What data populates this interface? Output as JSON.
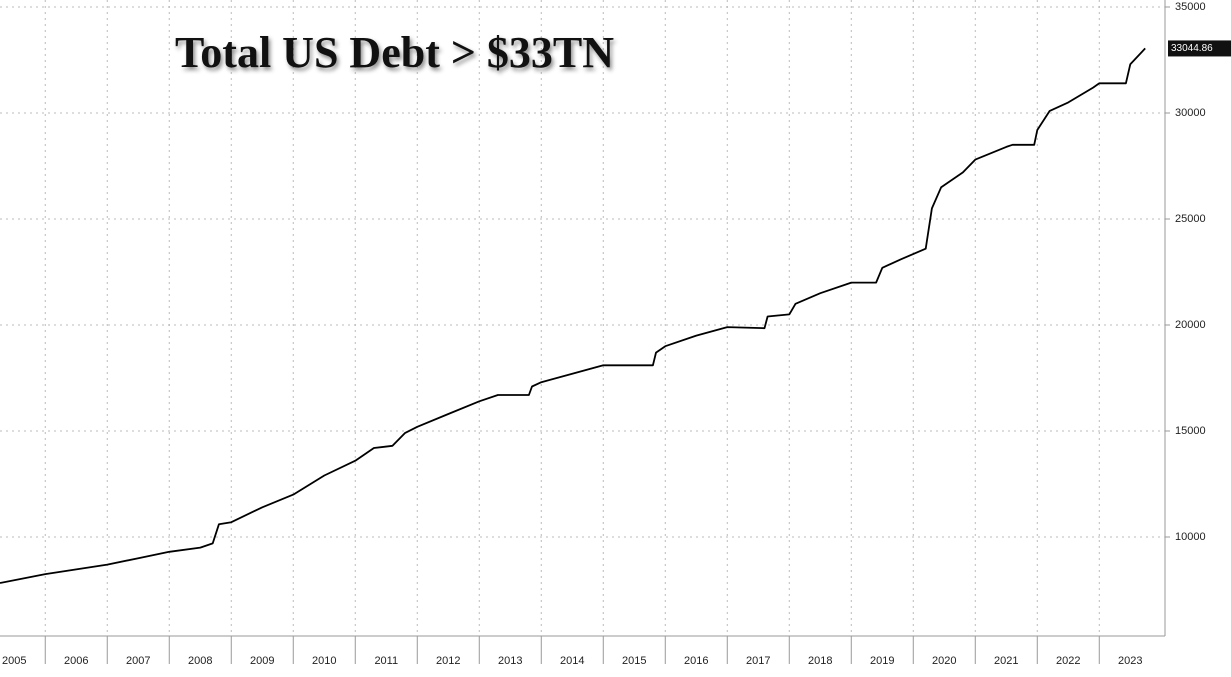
{
  "chart_data": {
    "type": "line",
    "title": "Total US Debt > $33TN",
    "x": [
      2005.27,
      2006.0,
      2007.0,
      2007.5,
      2008.0,
      2008.5,
      2008.7,
      2008.8,
      2009.0,
      2009.5,
      2010.0,
      2010.5,
      2011.0,
      2011.3,
      2011.6,
      2011.8,
      2012.0,
      2012.5,
      2013.0,
      2013.3,
      2013.8,
      2013.85,
      2014.0,
      2014.5,
      2015.0,
      2015.8,
      2015.85,
      2016.0,
      2016.5,
      2017.0,
      2017.6,
      2017.65,
      2018.0,
      2018.1,
      2018.5,
      2019.0,
      2019.4,
      2019.5,
      2019.8,
      2020.2,
      2020.3,
      2020.45,
      2020.8,
      2021.0,
      2021.5,
      2021.6,
      2021.95,
      2022.0,
      2022.2,
      2022.5,
      2022.9,
      2023.0,
      2023.43,
      2023.5,
      2023.74
    ],
    "series": [
      {
        "color": "#000000",
        "values": [
          7830,
          8250,
          8700,
          9000,
          9300,
          9500,
          9700,
          10600,
          10700,
          11400,
          12000,
          12900,
          13600,
          14200,
          14300,
          14900,
          15200,
          15800,
          16400,
          16700,
          16700,
          17100,
          17300,
          17700,
          18100,
          18100,
          18700,
          19000,
          19500,
          19900,
          19850,
          20400,
          20500,
          21000,
          21500,
          22000,
          22000,
          22700,
          23100,
          23600,
          25500,
          26500,
          27200,
          27800,
          28400,
          28500,
          28500,
          29200,
          30100,
          30500,
          31200,
          31400,
          31400,
          32300,
          33044.86
        ]
      }
    ],
    "xlim": [
      2005.27,
      2024.06
    ],
    "xticks": [
      {
        "value": 2005.5,
        "label": "2005"
      },
      {
        "value": 2006.5,
        "label": "2006"
      },
      {
        "value": 2007.5,
        "label": "2007"
      },
      {
        "value": 2008.5,
        "label": "2008"
      },
      {
        "value": 2009.5,
        "label": "2009"
      },
      {
        "value": 2010.5,
        "label": "2010"
      },
      {
        "value": 2011.5,
        "label": "2011"
      },
      {
        "value": 2012.5,
        "label": "2012"
      },
      {
        "value": 2013.5,
        "label": "2013"
      },
      {
        "value": 2014.5,
        "label": "2014"
      },
      {
        "value": 2015.5,
        "label": "2015"
      },
      {
        "value": 2016.5,
        "label": "2016"
      },
      {
        "value": 2017.5,
        "label": "2017"
      },
      {
        "value": 2018.5,
        "label": "2018"
      },
      {
        "value": 2019.5,
        "label": "2019"
      },
      {
        "value": 2020.5,
        "label": "2020"
      },
      {
        "value": 2021.5,
        "label": "2021"
      },
      {
        "value": 2022.5,
        "label": "2022"
      },
      {
        "value": 2023.5,
        "label": "2023"
      }
    ],
    "ylim": [
      5330,
      35330
    ],
    "yticks": [
      10000,
      15000,
      20000,
      25000,
      30000,
      35000
    ],
    "grid": true
  }
}
